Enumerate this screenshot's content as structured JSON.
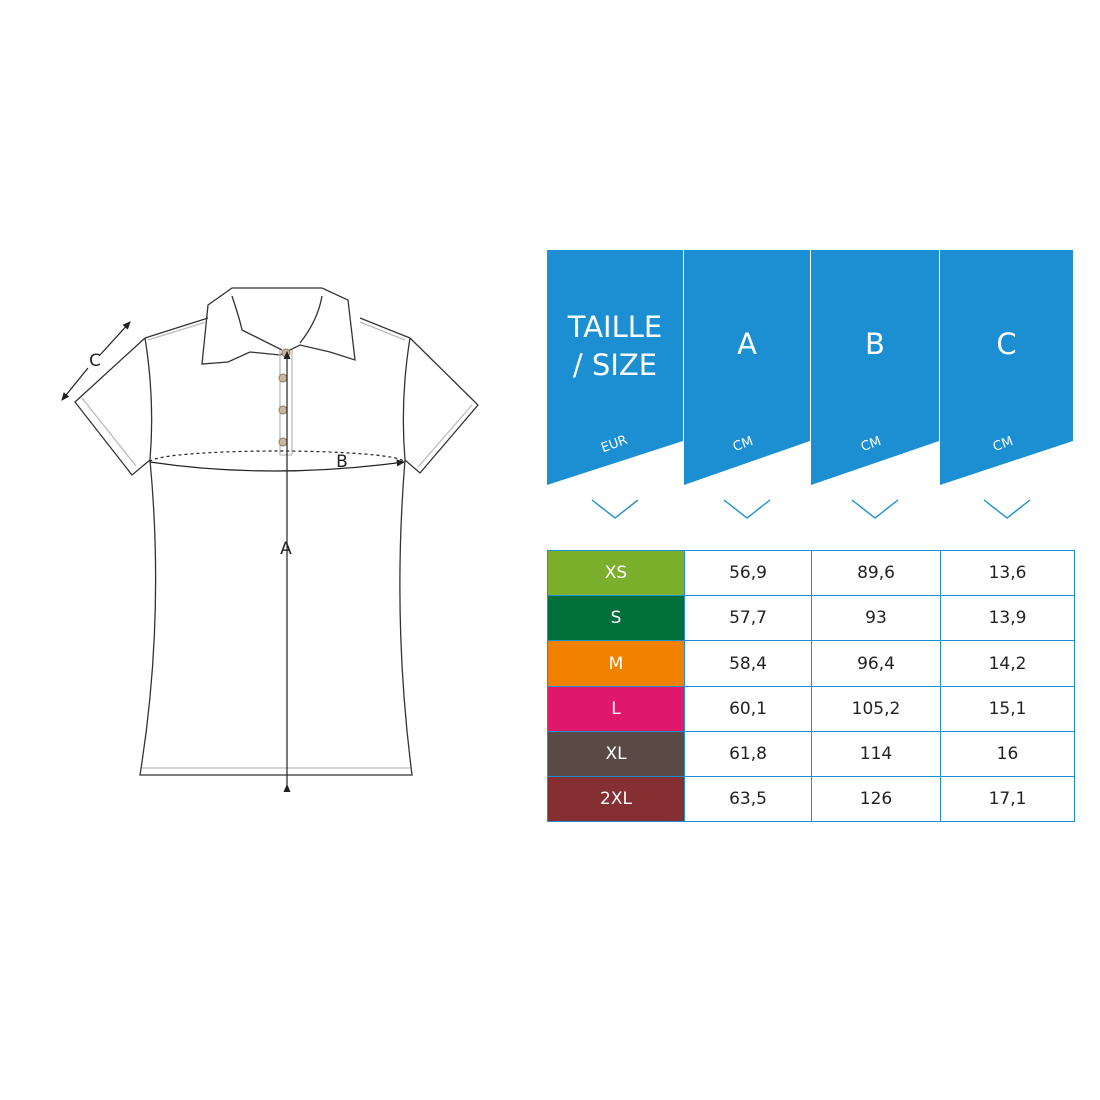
{
  "diagram": {
    "labels": {
      "a": "A",
      "b": "B",
      "c": "C"
    }
  },
  "table": {
    "header_color": "#1b8fd1",
    "columns": [
      {
        "title_line1": "TAILLE",
        "title_line2": "/ SIZE",
        "unit": "EUR"
      },
      {
        "title_line1": "A",
        "title_line2": "",
        "unit": "CM"
      },
      {
        "title_line1": "B",
        "title_line2": "",
        "unit": "CM"
      },
      {
        "title_line1": "C",
        "title_line2": "",
        "unit": "CM"
      }
    ],
    "rows": [
      {
        "size": "XS",
        "color": "#7cb02c",
        "a": "56,9",
        "b": "89,6",
        "c": "13,6"
      },
      {
        "size": "S",
        "color": "#006f3a",
        "a": "57,7",
        "b": "93",
        "c": "13,9"
      },
      {
        "size": "M",
        "color": "#f08200",
        "a": "58,4",
        "b": "96,4",
        "c": "14,2"
      },
      {
        "size": "L",
        "color": "#e0186c",
        "a": "60,1",
        "b": "105,2",
        "c": "15,1"
      },
      {
        "size": "XL",
        "color": "#5a4a46",
        "a": "61,8",
        "b": "114",
        "c": "16"
      },
      {
        "size": "2XL",
        "color": "#862f32",
        "a": "63,5",
        "b": "126",
        "c": "17,1"
      }
    ]
  }
}
